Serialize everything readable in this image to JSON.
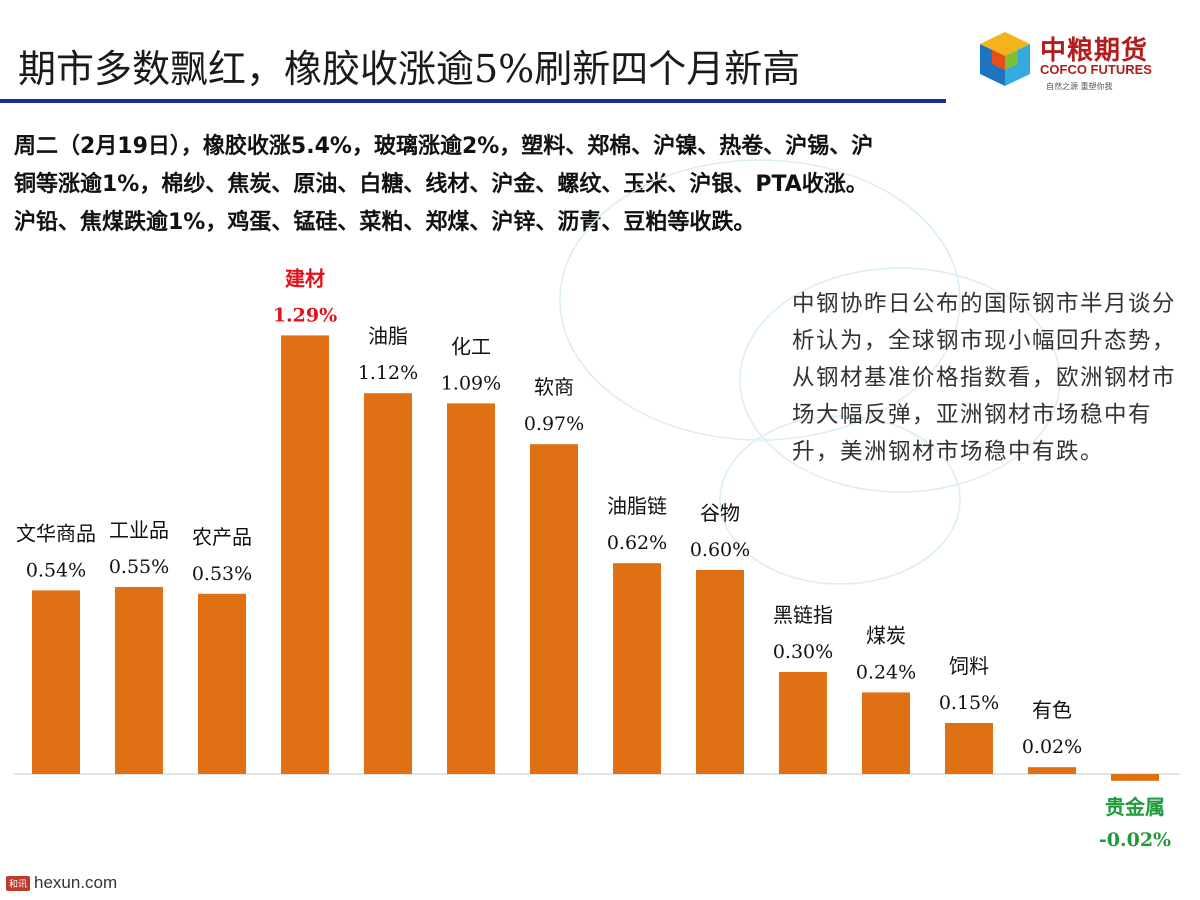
{
  "header": {
    "title": "期市多数飘红，橡胶收涨逾5%刷新四个月新高",
    "logo_cn": "中粮期货",
    "logo_en": "COFCO FUTURES",
    "logo_slogan": "自然之源 重塑你我"
  },
  "summary": {
    "line1": "周二（2月19日），橡胶收涨5.4%，玻璃涨逾2%，塑料、郑棉、沪镍、热卷、沪锡、沪",
    "line2": "铜等涨逾1%，棉纱、焦炭、原油、白糖、线材、沪金、螺纹、玉米、沪银、PTA收涨。",
    "line3": "沪铅、焦煤跌逾1%，鸡蛋、锰硅、菜粕、郑煤、沪锌、沥青、豆粕等收跌。"
  },
  "note": {
    "text": "中钢协昨日公布的国际钢市半月谈分析认为，全球钢市现小幅回升态势，从钢材基准价格指数看，欧洲钢材市场大幅反弹，亚洲钢材市场稳中有升，美洲钢材市场稳中有跌。"
  },
  "watermark": {
    "badge": "和讯",
    "text": "hexun.com"
  },
  "colors": {
    "bar": "#e07014",
    "highlight_label": "#e0131a",
    "negative_label": "#1f9a3a",
    "normal_label": "#111111",
    "title_rule": "#1f2a9a"
  },
  "chart_data": {
    "type": "bar",
    "categories": [
      "文华商品",
      "工业品",
      "农产品",
      "建材",
      "油脂",
      "化工",
      "软商",
      "油脂链",
      "谷物",
      "黑链指",
      "煤炭",
      "饲料",
      "有色",
      "贵金属"
    ],
    "values": [
      0.54,
      0.55,
      0.53,
      1.29,
      1.12,
      1.09,
      0.97,
      0.62,
      0.6,
      0.3,
      0.24,
      0.15,
      0.02,
      -0.02
    ],
    "value_labels": [
      "0.54%",
      "0.55%",
      "0.53%",
      "1.29%",
      "1.12%",
      "1.09%",
      "0.97%",
      "0.62%",
      "0.60%",
      "0.30%",
      "0.24%",
      "0.15%",
      "0.02%",
      "-0.02%"
    ],
    "highlight": [
      "normal",
      "normal",
      "normal",
      "max",
      "normal",
      "normal",
      "normal",
      "normal",
      "normal",
      "normal",
      "normal",
      "normal",
      "normal",
      "negative"
    ],
    "unit": "%",
    "title": "",
    "xlabel": "",
    "ylabel": "",
    "grid": false,
    "legend": "none"
  }
}
